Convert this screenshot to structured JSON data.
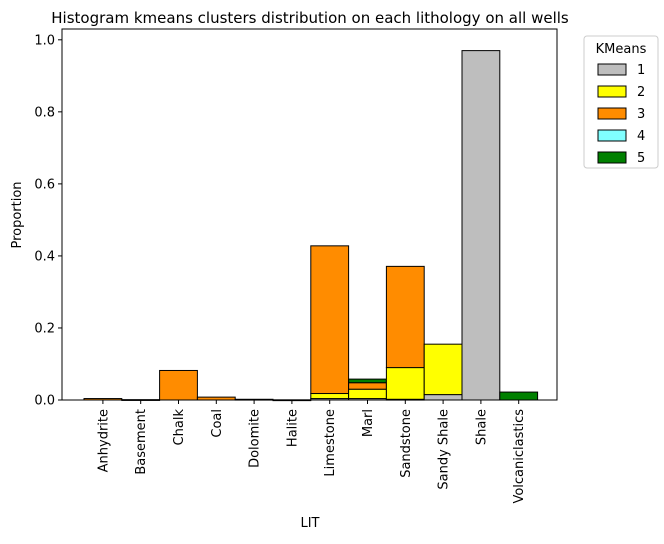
{
  "chart_data": {
    "type": "bar",
    "stacked": true,
    "title": "Histogram kmeans clusters distribution on each lithology on all wells",
    "xlabel": "LIT",
    "ylabel": "Proportion",
    "ylim": [
      0,
      1.03
    ],
    "yticks": [
      0.0,
      0.2,
      0.4,
      0.6,
      0.8,
      1.0
    ],
    "ytick_labels": [
      "0.0",
      "0.2",
      "0.4",
      "0.6",
      "0.8",
      "1.0"
    ],
    "grid": false,
    "legend": {
      "title": "KMeans",
      "placement": "outside-top-right"
    },
    "categories": [
      "Anhydrite",
      "Basement",
      "Chalk",
      "Coal",
      "Dolomite",
      "Halite",
      "Limestone",
      "Marl",
      "Sandstone",
      "Sandy Shale",
      "Shale",
      "Volcaniclastics"
    ],
    "series": [
      {
        "name": "1",
        "color": "#bebebe",
        "values": [
          0,
          0,
          0,
          0,
          0,
          0,
          0.004,
          0.004,
          0.002,
          0.015,
          0.97,
          0
        ]
      },
      {
        "name": "2",
        "color": "#ffff00",
        "values": [
          0,
          0,
          0,
          0,
          0,
          0,
          0.014,
          0.026,
          0.088,
          0.14,
          0,
          0
        ]
      },
      {
        "name": "3",
        "color": "#ff8c00",
        "values": [
          0.004,
          0.001,
          0.082,
          0.008,
          0.002,
          0.0005,
          0.41,
          0.018,
          0.281,
          0,
          0,
          0
        ]
      },
      {
        "name": "4",
        "color": "#80ffff",
        "values": [
          0,
          0,
          0,
          0,
          0,
          0,
          0,
          0,
          0,
          0,
          0,
          0
        ]
      },
      {
        "name": "5",
        "color": "#008000",
        "values": [
          0,
          0,
          0,
          0,
          0,
          0,
          0,
          0.01,
          0,
          0,
          0,
          0.022
        ]
      }
    ]
  }
}
